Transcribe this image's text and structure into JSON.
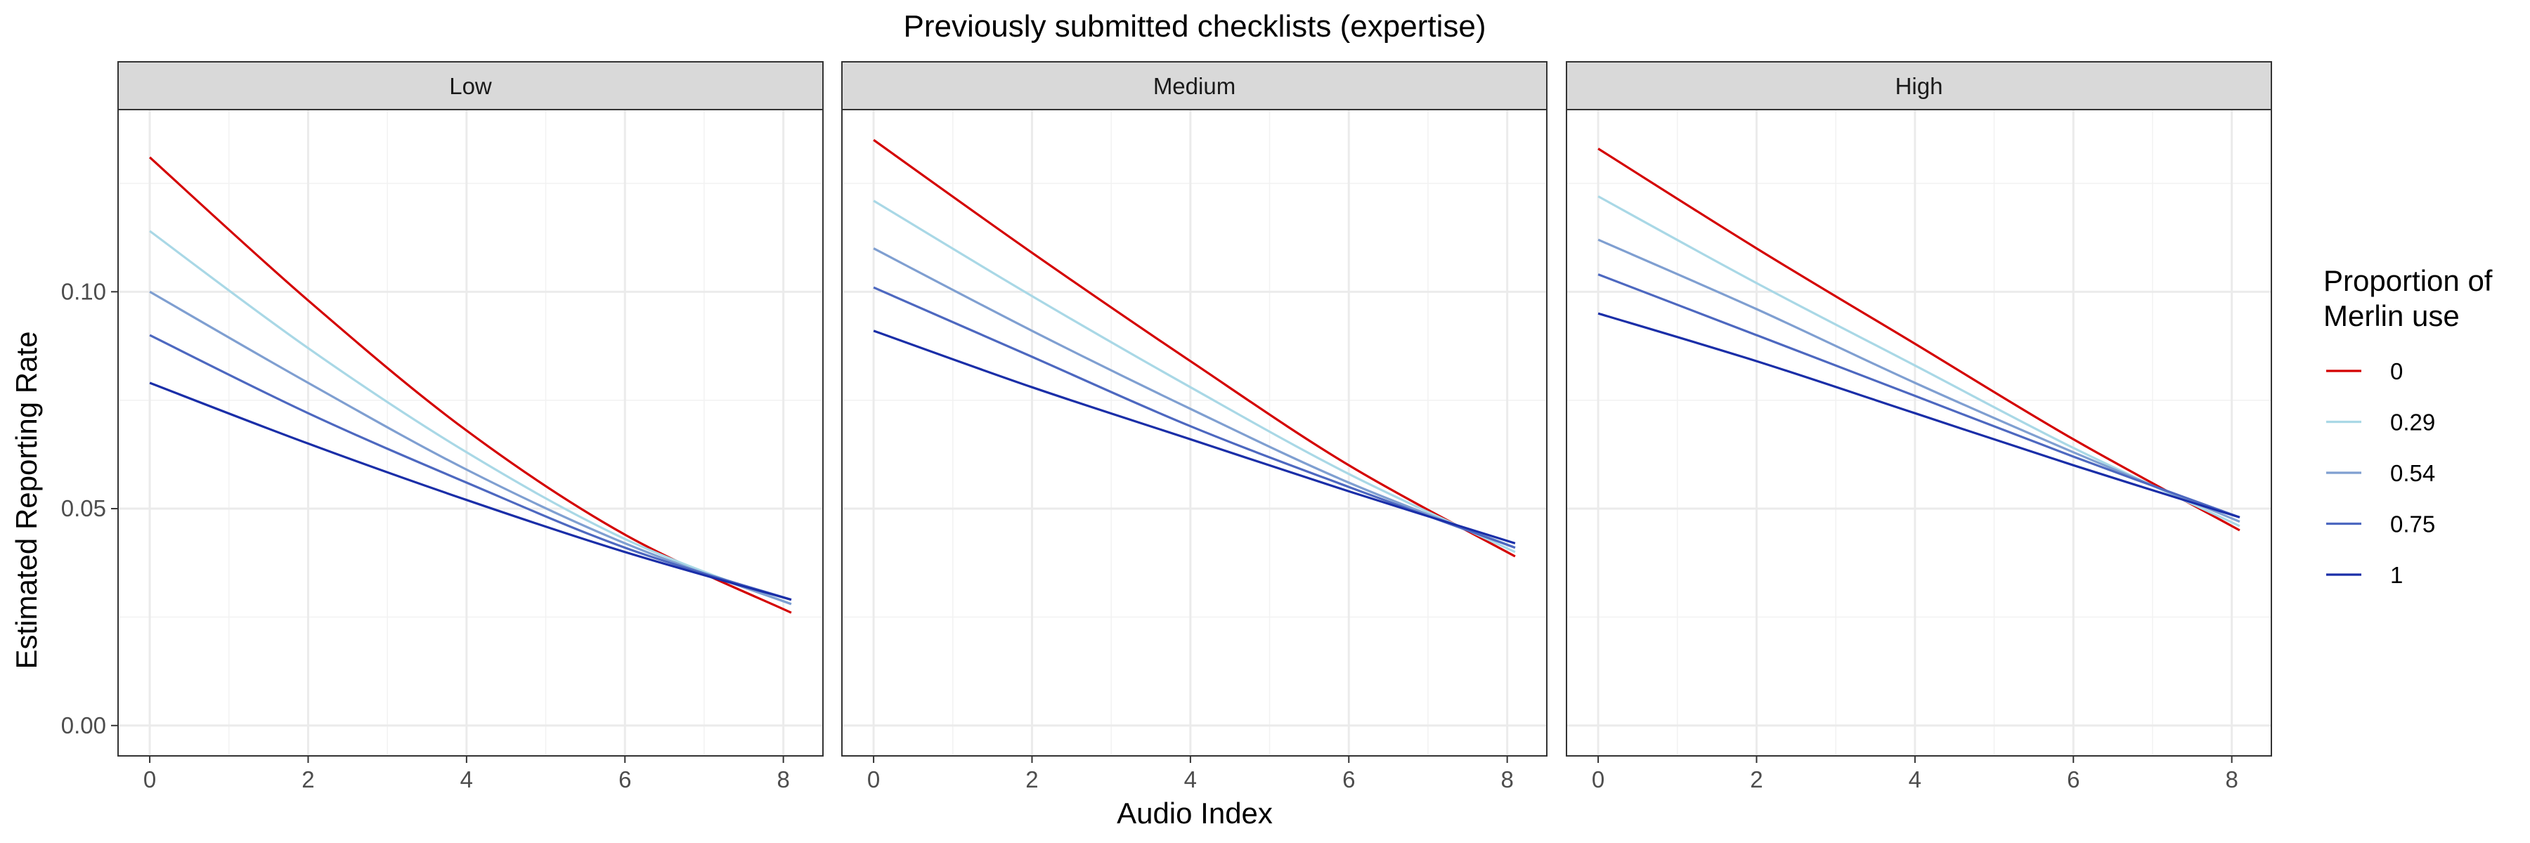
{
  "chart_data": {
    "type": "line",
    "title": "Previously submitted checklists (expertise)",
    "xlabel": "Audio Index",
    "ylabel": "Estimated Reporting Rate",
    "xlim": [
      -0.4,
      8.5
    ],
    "ylim": [
      -0.007,
      0.142
    ],
    "x_ticks": [
      0,
      2,
      4,
      6,
      8
    ],
    "x_tick_labels": [
      "0",
      "2",
      "4",
      "6",
      "8"
    ],
    "y_ticks": [
      0.0,
      0.05,
      0.1
    ],
    "y_tick_labels": [
      "0.00",
      "0.05",
      "0.10"
    ],
    "grid": true,
    "legend": {
      "title_lines": [
        "Proportion of",
        "Merlin use"
      ],
      "position": "right"
    },
    "panels": [
      {
        "name": "Low",
        "x": [
          0,
          2,
          4,
          6,
          8.1
        ],
        "series": [
          {
            "name": "0",
            "color": "#d40000",
            "values": [
              0.131,
              0.098,
              0.068,
              0.044,
              0.026
            ]
          },
          {
            "name": "0.29",
            "color": "#a9d8e6",
            "values": [
              0.114,
              0.087,
              0.063,
              0.043,
              0.028
            ]
          },
          {
            "name": "0.54",
            "color": "#7f9fd1",
            "values": [
              0.1,
              0.079,
              0.059,
              0.042,
              0.028
            ]
          },
          {
            "name": "0.75",
            "color": "#4d68c0",
            "values": [
              0.09,
              0.072,
              0.056,
              0.041,
              0.029
            ]
          },
          {
            "name": "1",
            "color": "#1a2ea8",
            "values": [
              0.079,
              0.065,
              0.052,
              0.04,
              0.029
            ]
          }
        ]
      },
      {
        "name": "Medium",
        "x": [
          0,
          2,
          4,
          6,
          8.1
        ],
        "series": [
          {
            "name": "0",
            "color": "#d40000",
            "values": [
              0.135,
              0.109,
              0.084,
              0.06,
              0.039
            ]
          },
          {
            "name": "0.29",
            "color": "#a9d8e6",
            "values": [
              0.121,
              0.099,
              0.078,
              0.058,
              0.04
            ]
          },
          {
            "name": "0.54",
            "color": "#7f9fd1",
            "values": [
              0.11,
              0.091,
              0.073,
              0.056,
              0.041
            ]
          },
          {
            "name": "0.75",
            "color": "#4d68c0",
            "values": [
              0.101,
              0.085,
              0.069,
              0.055,
              0.041
            ]
          },
          {
            "name": "1",
            "color": "#1a2ea8",
            "values": [
              0.091,
              0.078,
              0.066,
              0.054,
              0.042
            ]
          }
        ]
      },
      {
        "name": "High",
        "x": [
          0,
          2,
          4,
          6,
          8.1
        ],
        "series": [
          {
            "name": "0",
            "color": "#d40000",
            "values": [
              0.133,
              0.11,
              0.088,
              0.066,
              0.045
            ]
          },
          {
            "name": "0.29",
            "color": "#a9d8e6",
            "values": [
              0.122,
              0.102,
              0.083,
              0.064,
              0.046
            ]
          },
          {
            "name": "0.54",
            "color": "#7f9fd1",
            "values": [
              0.112,
              0.096,
              0.079,
              0.063,
              0.047
            ]
          },
          {
            "name": "0.75",
            "color": "#4d68c0",
            "values": [
              0.104,
              0.09,
              0.076,
              0.062,
              0.048
            ]
          },
          {
            "name": "1",
            "color": "#1a2ea8",
            "values": [
              0.095,
              0.084,
              0.072,
              0.06,
              0.048
            ]
          }
        ]
      }
    ]
  }
}
